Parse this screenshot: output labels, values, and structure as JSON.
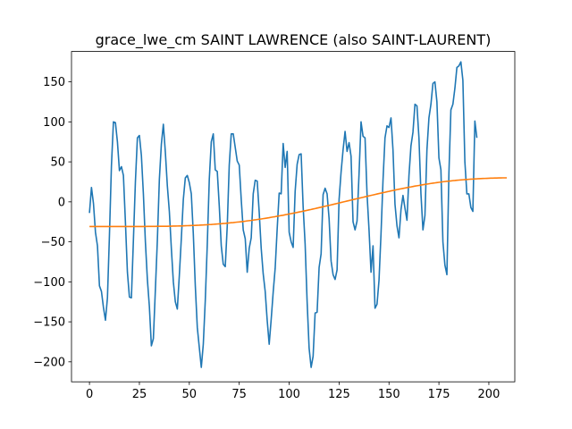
{
  "chart_data": {
    "type": "line",
    "title": "grace_lwe_cm SAINT LAWRENCE (also SAINT-LAURENT)",
    "xlabel": "",
    "ylabel": "",
    "xlim": [
      -9,
      213
    ],
    "ylim": [
      -225,
      188
    ],
    "xticks": [
      0,
      25,
      50,
      75,
      100,
      125,
      150,
      175,
      200
    ],
    "yticks": [
      -200,
      -150,
      -100,
      -50,
      0,
      50,
      100,
      150
    ],
    "grid": false,
    "series": [
      {
        "color": "#1f77b4",
        "values": [
          -14,
          18,
          -2,
          -38,
          -55,
          -105,
          -112,
          -132,
          -148,
          -120,
          -42,
          45,
          100,
          99,
          75,
          39,
          44,
          33,
          -25,
          -88,
          -119,
          -120,
          -48,
          25,
          80,
          83,
          58,
          10,
          -50,
          -97,
          -131,
          -180,
          -171,
          -110,
          -48,
          28,
          72,
          97,
          62,
          20,
          -12,
          -58,
          -100,
          -125,
          -134,
          -92,
          -46,
          3,
          30,
          33,
          24,
          10,
          -40,
          -105,
          -157,
          -182,
          -207,
          -178,
          -123,
          -53,
          28,
          75,
          85,
          40,
          38,
          -5,
          -55,
          -78,
          -81,
          -30,
          46,
          85,
          85,
          68,
          51,
          46,
          3,
          -35,
          -46,
          -88,
          -58,
          -45,
          10,
          27,
          26,
          -13,
          -58,
          -90,
          -112,
          -148,
          -178,
          -147,
          -113,
          -83,
          -34,
          11,
          10,
          73,
          43,
          63,
          -38,
          -50,
          -57,
          13,
          47,
          59,
          60,
          -6,
          -53,
          -125,
          -183,
          -207,
          -193,
          -139,
          -138,
          -82,
          -65,
          9,
          17,
          10,
          -21,
          -74,
          -91,
          -97,
          -85,
          3,
          37,
          65,
          88,
          63,
          74,
          57,
          -25,
          -35,
          -24,
          35,
          100,
          82,
          80,
          10,
          -35,
          -88,
          -55,
          -133,
          -128,
          -98,
          -40,
          27,
          80,
          95,
          93,
          105,
          65,
          -3,
          -30,
          -45,
          -10,
          8,
          -8,
          -23,
          33,
          70,
          87,
          122,
          120,
          80,
          10,
          -35,
          -17,
          65,
          105,
          122,
          148,
          150,
          125,
          55,
          40,
          -50,
          -79,
          -91,
          35,
          115,
          122,
          142,
          168,
          170,
          175,
          152,
          50,
          10,
          10,
          -7,
          -12,
          101,
          80
        ]
      },
      {
        "color": "#ff7f0e",
        "values": [
          -30.8,
          -30.8,
          -30.8,
          -30.8,
          -30.8,
          -30.8,
          -30.8,
          -30.8,
          -30.8,
          -30.8,
          -30.8,
          -30.8,
          -30.8,
          -30.8,
          -30.8,
          -30.8,
          -30.8,
          -30.8,
          -30.8,
          -30.8,
          -30.8,
          -30.8,
          -30.8,
          -30.8,
          -30.8,
          -30.8,
          -30.8,
          -30.8,
          -30.8,
          -30.7,
          -30.7,
          -30.7,
          -30.7,
          -30.7,
          -30.6,
          -30.6,
          -30.6,
          -30.5,
          -30.5,
          -30.5,
          -30.4,
          -30.4,
          -30.3,
          -30.3,
          -30.2,
          -30.1,
          -30.1,
          -30.0,
          -29.9,
          -29.8,
          -29.7,
          -29.6,
          -29.5,
          -29.4,
          -29.3,
          -29.2,
          -29.0,
          -28.9,
          -28.7,
          -28.6,
          -28.4,
          -28.3,
          -28.1,
          -27.9,
          -27.7,
          -27.5,
          -27.3,
          -27.1,
          -26.9,
          -26.6,
          -26.4,
          -26.1,
          -25.9,
          -25.6,
          -25.3,
          -25.1,
          -24.8,
          -24.5,
          -24.2,
          -23.8,
          -23.5,
          -23.2,
          -22.8,
          -22.5,
          -22.1,
          -21.7,
          -21.4,
          -21.0,
          -20.6,
          -20.2,
          -19.8,
          -19.3,
          -18.9,
          -18.5,
          -18.0,
          -17.6,
          -17.1,
          -16.7,
          -16.2,
          -15.7,
          -15.2,
          -14.7,
          -14.2,
          -13.7,
          -13.2,
          -12.7,
          -12.2,
          -11.6,
          -11.1,
          -10.6,
          -10.0,
          -9.5,
          -8.9,
          -8.4,
          -7.8,
          -7.2,
          -6.7,
          -6.1,
          -5.5,
          -4.9,
          -4.4,
          -3.8,
          -3.2,
          -2.6,
          -2.0,
          -1.4,
          -0.8,
          -0.2,
          0.4,
          1.0,
          1.6,
          2.2,
          2.8,
          3.4,
          4.0,
          4.5,
          5.1,
          5.7,
          6.3,
          6.9,
          7.5,
          8.1,
          8.6,
          9.2,
          9.8,
          10.4,
          10.9,
          11.5,
          12.0,
          12.6,
          13.1,
          13.7,
          14.2,
          14.7,
          15.3,
          15.8,
          16.3,
          16.8,
          17.3,
          17.8,
          18.3,
          18.7,
          19.2,
          19.7,
          20.1,
          20.5,
          21.0,
          21.4,
          21.8,
          22.2,
          22.6,
          23.0,
          23.4,
          23.7,
          24.1,
          24.4,
          24.7,
          25.1,
          25.4,
          25.7,
          25.9,
          26.2,
          26.5,
          26.7,
          27.0,
          27.2,
          27.4,
          27.6,
          27.8,
          28.0,
          28.2,
          28.4,
          28.5,
          28.7,
          28.8,
          29.0,
          29.1,
          29.2,
          29.3,
          29.4,
          29.5,
          29.6,
          29.7,
          29.8,
          29.8,
          29.9,
          29.9,
          30.0,
          30.0,
          30.0
        ]
      }
    ]
  }
}
